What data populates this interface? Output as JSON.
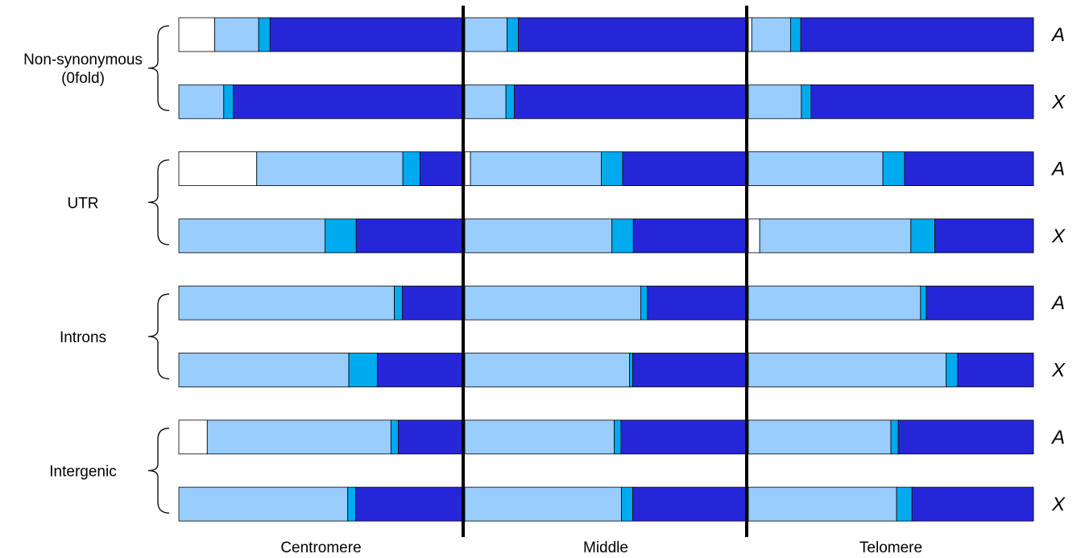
{
  "chart_data": {
    "type": "bar",
    "orientation": "horizontal",
    "stacked": true,
    "normalized": true,
    "colors": [
      "#ffffff",
      "#99ccff",
      "#00aaee",
      "#2626d9"
    ],
    "regions": [
      "Centromere",
      "Middle",
      "Telomere"
    ],
    "groups": [
      {
        "label": "Non-synonymous\n(0fold)",
        "rows": [
          {
            "label": "A",
            "regions": [
              [
                0.126,
                0.155,
                0.04,
                0.679
              ],
              [
                0.0,
                0.15,
                0.04,
                0.81
              ],
              [
                0.012,
                0.136,
                0.036,
                0.816
              ]
            ]
          },
          {
            "label": "X",
            "regions": [
              [
                0.0,
                0.158,
                0.034,
                0.808
              ],
              [
                0.0,
                0.146,
                0.03,
                0.824
              ],
              [
                0.0,
                0.186,
                0.034,
                0.78
              ]
            ]
          }
        ]
      },
      {
        "label": "UTR",
        "rows": [
          {
            "label": "A",
            "regions": [
              [
                0.274,
                0.514,
                0.06,
                0.152
              ],
              [
                0.02,
                0.464,
                0.076,
                0.44
              ],
              [
                0.0,
                0.472,
                0.076,
                0.452
              ]
            ]
          },
          {
            "label": "X",
            "regions": [
              [
                0.0,
                0.514,
                0.11,
                0.376
              ],
              [
                0.0,
                0.522,
                0.076,
                0.402
              ],
              [
                0.04,
                0.53,
                0.084,
                0.346
              ]
            ]
          }
        ]
      },
      {
        "label": "Introns",
        "rows": [
          {
            "label": "A",
            "regions": [
              [
                0.0,
                0.758,
                0.028,
                0.214
              ],
              [
                0.0,
                0.624,
                0.024,
                0.352
              ],
              [
                0.0,
                0.604,
                0.02,
                0.376
              ]
            ]
          },
          {
            "label": "X",
            "regions": [
              [
                0.0,
                0.598,
                0.1,
                0.302
              ],
              [
                0.0,
                0.584,
                0.012,
                0.404
              ],
              [
                0.0,
                0.694,
                0.04,
                0.266
              ]
            ]
          }
        ]
      },
      {
        "label": "Intergenic",
        "rows": [
          {
            "label": "A",
            "regions": [
              [
                0.1,
                0.646,
                0.026,
                0.228
              ],
              [
                0.0,
                0.53,
                0.024,
                0.446
              ],
              [
                0.0,
                0.5,
                0.026,
                0.474
              ]
            ]
          },
          {
            "label": "X",
            "regions": [
              [
                0.0,
                0.594,
                0.028,
                0.378
              ],
              [
                0.0,
                0.556,
                0.04,
                0.404
              ],
              [
                0.0,
                0.52,
                0.054,
                0.426
              ]
            ]
          }
        ]
      }
    ]
  }
}
